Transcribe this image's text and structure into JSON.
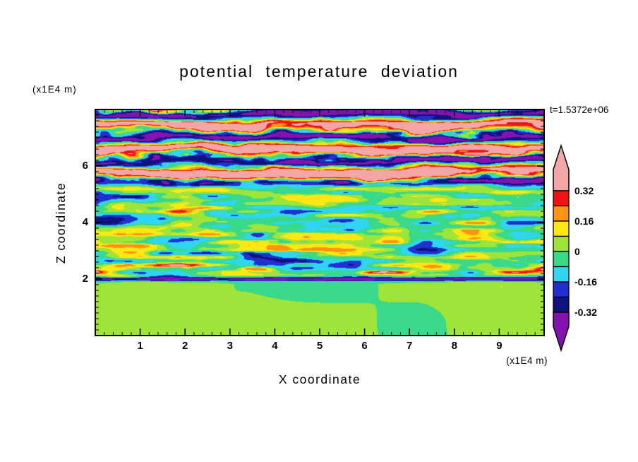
{
  "title": "potential temperature deviation",
  "timestamp": "t=1.5372e+06",
  "axes": {
    "x_label": "X coordinate",
    "x_unit": "(x1E4 m)",
    "x_ticks": [
      "1",
      "2",
      "3",
      "4",
      "5",
      "6",
      "7",
      "8",
      "9"
    ],
    "x_range": [
      0,
      10
    ],
    "z_label": "Z coordinate",
    "z_unit": "(x1E4 m)",
    "z_ticks": [
      "2",
      "4",
      "6"
    ],
    "z_range": [
      0,
      8
    ]
  },
  "colorbar": {
    "tick_labels": [
      "0.32",
      "0.16",
      "0",
      "-0.16",
      "-0.32"
    ],
    "colors_top_to_bottom": [
      "#f2a6a6",
      "#ee1414",
      "#ff9414",
      "#ffe714",
      "#9fe438",
      "#38d98a",
      "#2fd6f2",
      "#2130cf",
      "#12127e",
      "#8312ae"
    ],
    "band_values_top_to_bottom": [
      "> 0.32",
      "0.24 to 0.32",
      "0.16 to 0.24",
      "0.08 to 0.16",
      "0 to 0.08",
      "-0.08 to 0",
      "-0.16 to -0.08",
      "-0.24 to -0.16",
      "-0.32 to -0.24",
      "< -0.32"
    ]
  },
  "chart_data": {
    "type": "heatmap",
    "title": "potential temperature deviation",
    "annotation": "t=1.5372e+06",
    "xlabel": "X coordinate",
    "ylabel": "Z coordinate",
    "axis_units": "(x1E4 m)",
    "x_range": [
      0,
      10
    ],
    "y_range": [
      0,
      8
    ],
    "x_ticks": [
      1,
      2,
      3,
      4,
      5,
      6,
      7,
      8,
      9
    ],
    "y_ticks": [
      2,
      4,
      6
    ],
    "contour_interval": 0.08,
    "value_levels": [
      -0.32,
      -0.24,
      -0.16,
      -0.08,
      0,
      0.08,
      0.16,
      0.24,
      0.32
    ],
    "labeled_levels": [
      0.32,
      0.16,
      0,
      -0.16,
      -0.32
    ],
    "palette_low_to_high": [
      "#8312ae",
      "#12127e",
      "#2130cf",
      "#2fd6f2",
      "#38d98a",
      "#9fe438",
      "#ffe714",
      "#ff9414",
      "#ee1414",
      "#f2a6a6"
    ],
    "legend_position": "right",
    "grid": false,
    "field_structure": [
      {
        "z_range": [
          0,
          1.9
        ],
        "typical_deviation": [
          -0.05,
          0.09
        ],
        "description": "quiescent near-surface layer: smooth green / yellow-green blobs, deviation near zero"
      },
      {
        "z_range": [
          1.9,
          2.2
        ],
        "typical_deviation": [
          -0.5,
          0.3
        ],
        "description": "thin shear line spanning full width: strong negative (navy) filament with red/orange fragments just above"
      },
      {
        "z_range": [
          2.2,
          5.1
        ],
        "typical_deviation": [
          -0.3,
          0.3
        ],
        "description": "turbulent mixed layer of horizontally elongated eddies, mostly |deviation| < 0.16 (green/cyan/yellow-green) with scattered yellow, red and navy streaks"
      },
      {
        "z_range": [
          5.1,
          8
        ],
        "typical_deviation": [
          -0.6,
          0.6
        ],
        "description": "stratified wave region: alternating wavy horizontal bands exceeding +0.32 (pink) and below -0.32 (purple), edged by thin red, orange, cyan and navy filaments"
      }
    ]
  }
}
